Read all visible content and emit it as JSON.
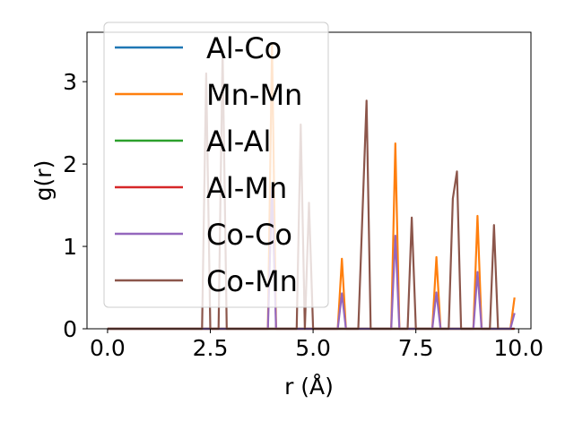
{
  "chart_data": {
    "type": "line",
    "xlabel": "r (Å)",
    "ylabel": "g(r)",
    "xlim": [
      -0.5,
      10.3
    ],
    "ylim": [
      0,
      3.6
    ],
    "xticks": [
      0.0,
      2.5,
      5.0,
      7.5,
      10.0
    ],
    "xtick_labels": [
      "0.0",
      "2.5",
      "5.0",
      "7.5",
      "10.0"
    ],
    "yticks": [
      0,
      1,
      2,
      3
    ],
    "ytick_labels": [
      "0",
      "1",
      "2",
      "3"
    ],
    "grid": false,
    "legend_position": "top-left",
    "series": [
      {
        "name": "Al-Co",
        "color": "#1f77b4",
        "points": [
          [
            0,
            0
          ],
          [
            9.9,
            0
          ]
        ]
      },
      {
        "name": "Mn-Mn",
        "color": "#ff7f0e",
        "points": [
          [
            0,
            0
          ],
          [
            3.9,
            0
          ],
          [
            4.0,
            3.45
          ],
          [
            4.1,
            0
          ],
          [
            5.6,
            0
          ],
          [
            5.7,
            0.85
          ],
          [
            5.8,
            0
          ],
          [
            6.9,
            0
          ],
          [
            7.0,
            2.25
          ],
          [
            7.1,
            0
          ],
          [
            7.9,
            0
          ],
          [
            8.0,
            0.87
          ],
          [
            8.1,
            0
          ],
          [
            8.9,
            0
          ],
          [
            9.0,
            1.37
          ],
          [
            9.1,
            0
          ],
          [
            9.8,
            0
          ],
          [
            9.9,
            0.38
          ]
        ]
      },
      {
        "name": "Al-Al",
        "color": "#2ca02c",
        "points": [
          [
            0,
            0
          ],
          [
            9.9,
            0
          ]
        ]
      },
      {
        "name": "Al-Mn",
        "color": "#d62728",
        "points": [
          [
            0,
            0
          ],
          [
            9.9,
            0
          ]
        ]
      },
      {
        "name": "Co-Co",
        "color": "#9467bd",
        "points": [
          [
            0,
            0
          ],
          [
            3.9,
            0
          ],
          [
            4.0,
            1.72
          ],
          [
            4.1,
            0
          ],
          [
            5.6,
            0
          ],
          [
            5.7,
            0.43
          ],
          [
            5.8,
            0
          ],
          [
            6.9,
            0
          ],
          [
            7.0,
            1.13
          ],
          [
            7.1,
            0
          ],
          [
            7.9,
            0
          ],
          [
            8.0,
            0.44
          ],
          [
            8.1,
            0
          ],
          [
            8.9,
            0
          ],
          [
            9.0,
            0.69
          ],
          [
            9.1,
            0
          ],
          [
            9.8,
            0
          ],
          [
            9.9,
            0.19
          ]
        ]
      },
      {
        "name": "Co-Mn",
        "color": "#8c564b",
        "points": [
          [
            0,
            0
          ],
          [
            2.3,
            0
          ],
          [
            2.4,
            3.1
          ],
          [
            2.5,
            0
          ],
          [
            2.7,
            0
          ],
          [
            2.8,
            3.38
          ],
          [
            2.9,
            0
          ],
          [
            4.6,
            0
          ],
          [
            4.7,
            2.48
          ],
          [
            4.8,
            0
          ],
          [
            4.9,
            1.53
          ],
          [
            5.0,
            0
          ],
          [
            6.1,
            0
          ],
          [
            6.3,
            2.77
          ],
          [
            6.4,
            0
          ],
          [
            7.3,
            0
          ],
          [
            7.4,
            1.35
          ],
          [
            7.5,
            0
          ],
          [
            8.3,
            0
          ],
          [
            8.4,
            1.58
          ],
          [
            8.5,
            1.91
          ],
          [
            8.6,
            0
          ],
          [
            9.3,
            0
          ],
          [
            9.4,
            1.26
          ],
          [
            9.5,
            0
          ]
        ]
      }
    ]
  }
}
